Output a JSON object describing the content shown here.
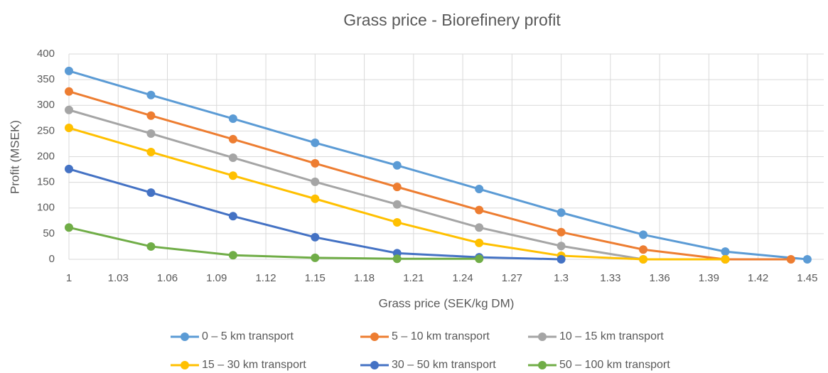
{
  "chart_data": {
    "type": "line",
    "title": "Grass price - Biorefinery profit",
    "x_label": "Grass price (SEK/kg DM)",
    "y_label": "Profit (MSEK)",
    "xlim": [
      1,
      1.46
    ],
    "xticks": [
      1,
      1.03,
      1.06,
      1.09,
      1.12,
      1.15,
      1.18,
      1.21,
      1.24,
      1.27,
      1.3,
      1.33,
      1.36,
      1.39,
      1.42,
      1.45
    ],
    "ylim": [
      0,
      400
    ],
    "yticks": [
      0,
      50,
      100,
      150,
      200,
      250,
      300,
      350,
      400
    ],
    "grid": true,
    "legend": "bottom",
    "series": [
      {
        "name": "0 – 5 km transport",
        "color": "#5b9bd5",
        "x": [
          1,
          1.05,
          1.1,
          1.15,
          1.2,
          1.25,
          1.3,
          1.35,
          1.4,
          1.45
        ],
        "values": [
          367,
          320,
          274,
          227,
          183,
          137,
          91,
          48,
          15,
          0
        ]
      },
      {
        "name": "5 – 10 km transport",
        "color": "#ed7d31",
        "x": [
          1,
          1.05,
          1.1,
          1.15,
          1.2,
          1.25,
          1.3,
          1.35,
          1.4,
          1.44
        ],
        "values": [
          327,
          280,
          234,
          187,
          141,
          96,
          53,
          19,
          0,
          0
        ]
      },
      {
        "name": "10 – 15 km transport",
        "color": "#a5a5a5",
        "x": [
          1,
          1.05,
          1.1,
          1.15,
          1.2,
          1.25,
          1.3,
          1.35,
          1.4
        ],
        "values": [
          291,
          245,
          198,
          151,
          107,
          62,
          26,
          0,
          0
        ]
      },
      {
        "name": "15 – 30 km transport",
        "color": "#ffc000",
        "x": [
          1,
          1.05,
          1.1,
          1.15,
          1.2,
          1.25,
          1.3,
          1.35,
          1.4
        ],
        "values": [
          256,
          209,
          163,
          118,
          72,
          32,
          7,
          0,
          0
        ]
      },
      {
        "name": "30 – 50 km transport",
        "color": "#4472c4",
        "x": [
          1,
          1.05,
          1.1,
          1.15,
          1.2,
          1.25,
          1.3
        ],
        "values": [
          176,
          130,
          84,
          43,
          12,
          4,
          0
        ]
      },
      {
        "name": "50 – 100 km transport",
        "color": "#70ad47",
        "x": [
          1,
          1.05,
          1.1,
          1.15,
          1.2,
          1.25
        ],
        "values": [
          62,
          25,
          8,
          3,
          1,
          1
        ]
      }
    ]
  }
}
